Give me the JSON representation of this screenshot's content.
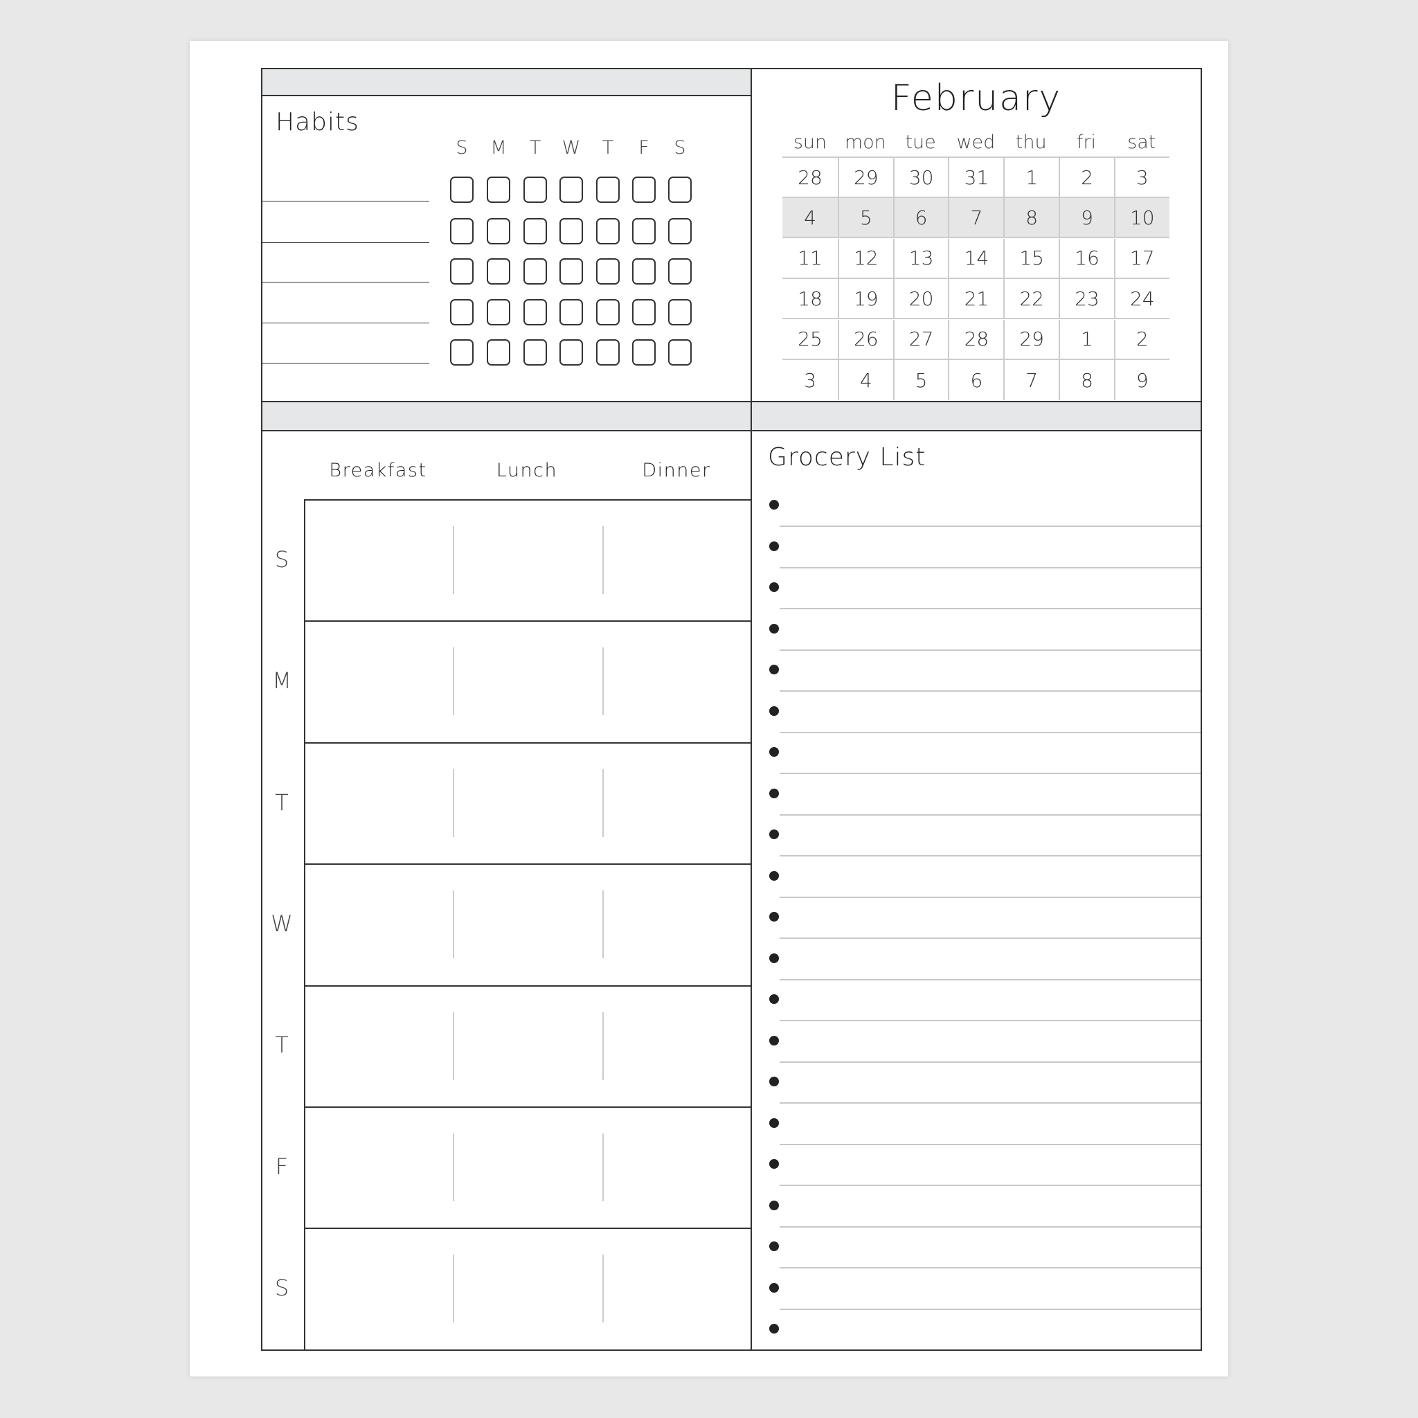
{
  "habits": {
    "title": "Habits",
    "day_letters": [
      "S",
      "M",
      "T",
      "W",
      "T",
      "F",
      "S"
    ],
    "rows": 5
  },
  "calendar": {
    "month": "February",
    "weekdays": [
      "sun",
      "mon",
      "tue",
      "wed",
      "thu",
      "fri",
      "sat"
    ],
    "weeks": [
      [
        "28",
        "29",
        "30",
        "31",
        "1",
        "2",
        "3"
      ],
      [
        "4",
        "5",
        "6",
        "7",
        "8",
        "9",
        "10"
      ],
      [
        "11",
        "12",
        "13",
        "14",
        "15",
        "16",
        "17"
      ],
      [
        "18",
        "19",
        "20",
        "21",
        "22",
        "23",
        "24"
      ],
      [
        "25",
        "26",
        "27",
        "28",
        "29",
        "1",
        "2"
      ],
      [
        "3",
        "4",
        "5",
        "6",
        "7",
        "8",
        "9"
      ]
    ],
    "highlighted_week": 1,
    "highlight_color": "#e6e6e6"
  },
  "meals": {
    "columns": [
      "Breakfast",
      "Lunch",
      "Dinner"
    ],
    "days": [
      "S",
      "M",
      "T",
      "W",
      "T",
      "F",
      "S"
    ]
  },
  "grocery": {
    "title": "Grocery List",
    "bullet_count": 21
  }
}
